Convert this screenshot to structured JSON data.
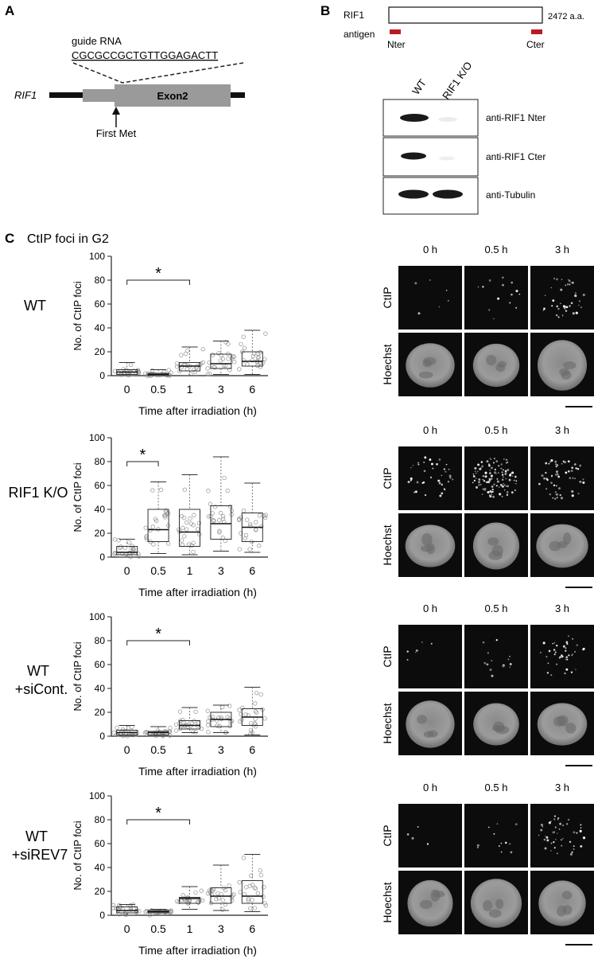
{
  "panelA": {
    "letter": "A",
    "guide_label": "guide RNA",
    "guide_seq": "CGCGCCGCTGTTGGAGACTT",
    "gene": "RIF1",
    "exon": "Exon2",
    "first_met": "First Met"
  },
  "panelB": {
    "letter": "B",
    "protein": "RIF1",
    "length": "2472 a.a.",
    "antigen": "antigen",
    "nter": "Nter",
    "cter": "Cter",
    "lanes": [
      "WT",
      "RIF1 K/O"
    ],
    "blots": [
      "anti-RIF1 Nter",
      "anti-RIF1 Cter",
      "anti-Tubulin"
    ],
    "antigen_color": "#b81c22"
  },
  "panelC": {
    "letter": "C",
    "title": "CtIP foci in G2",
    "ylabel": "No. of CtIP foci",
    "xlabel": "Time after irradiation (h)",
    "image_times": [
      "0 h",
      "0.5 h",
      "3 h"
    ],
    "image_rows": [
      "CtIP",
      "Hoechst"
    ],
    "significance": "*",
    "conditions": [
      {
        "label1": "WT",
        "label2": ""
      },
      {
        "label1": "RIF1 K/O",
        "label2": ""
      },
      {
        "label1": "WT",
        "label2": "+siCont."
      },
      {
        "label1": "WT",
        "label2": "+siREV7"
      }
    ]
  },
  "chart_data": [
    {
      "type": "box",
      "title": "",
      "xlabel": "Time after irradiation (h)",
      "ylabel": "No. of CtIP foci",
      "categories": [
        "0",
        "0.5",
        "1",
        "3",
        "6"
      ],
      "yticks": [
        0,
        20,
        40,
        60,
        80,
        100
      ],
      "ylim": [
        0,
        100
      ],
      "boxes": [
        {
          "min": 0,
          "q1": 1,
          "median": 3,
          "q3": 5,
          "max": 11
        },
        {
          "min": 0,
          "q1": 0,
          "median": 1,
          "q3": 2,
          "max": 5
        },
        {
          "min": 0,
          "q1": 4,
          "median": 8,
          "q3": 11,
          "max": 24
        },
        {
          "min": 1,
          "q1": 6,
          "median": 10,
          "q3": 18,
          "max": 29
        },
        {
          "min": 1,
          "q1": 8,
          "median": 12,
          "q3": 20,
          "max": 38
        }
      ],
      "significance": {
        "from": "0",
        "to": "1",
        "label": "*"
      }
    },
    {
      "type": "box",
      "title": "",
      "xlabel": "Time after irradiation (h)",
      "ylabel": "No. of CtIP foci",
      "categories": [
        "0",
        "0.5",
        "1",
        "3",
        "6"
      ],
      "yticks": [
        0,
        20,
        40,
        60,
        80,
        100
      ],
      "ylim": [
        0,
        100
      ],
      "boxes": [
        {
          "min": 0,
          "q1": 2,
          "median": 4,
          "q3": 9,
          "max": 15
        },
        {
          "min": 3,
          "q1": 13,
          "median": 23,
          "q3": 40,
          "max": 63
        },
        {
          "min": 2,
          "q1": 9,
          "median": 21,
          "q3": 40,
          "max": 69
        },
        {
          "min": 5,
          "q1": 15,
          "median": 28,
          "q3": 43,
          "max": 84
        },
        {
          "min": 4,
          "q1": 13,
          "median": 25,
          "q3": 37,
          "max": 62
        }
      ],
      "significance": {
        "from": "0",
        "to": "0.5",
        "label": "*"
      }
    },
    {
      "type": "box",
      "title": "",
      "xlabel": "Time after irradiation (h)",
      "ylabel": "No. of CtIP foci",
      "categories": [
        "0",
        "0.5",
        "1",
        "3",
        "6"
      ],
      "yticks": [
        0,
        20,
        40,
        60,
        80,
        100
      ],
      "ylim": [
        0,
        100
      ],
      "boxes": [
        {
          "min": 0,
          "q1": 1,
          "median": 3,
          "q3": 5,
          "max": 9
        },
        {
          "min": 0,
          "q1": 1,
          "median": 3,
          "q3": 4,
          "max": 8
        },
        {
          "min": 3,
          "q1": 6,
          "median": 9,
          "q3": 13,
          "max": 24
        },
        {
          "min": 3,
          "q1": 8,
          "median": 14,
          "q3": 20,
          "max": 26
        },
        {
          "min": 1,
          "q1": 9,
          "median": 16,
          "q3": 23,
          "max": 41
        }
      ],
      "significance": {
        "from": "0",
        "to": "1",
        "label": "*"
      }
    },
    {
      "type": "box",
      "title": "",
      "xlabel": "Time after irradiation (h)",
      "ylabel": "No. of CtIP foci",
      "categories": [
        "0",
        "0.5",
        "1",
        "3",
        "6"
      ],
      "yticks": [
        0,
        20,
        40,
        60,
        80,
        100
      ],
      "ylim": [
        0,
        100
      ],
      "boxes": [
        {
          "min": 0,
          "q1": 2,
          "median": 4,
          "q3": 7,
          "max": 9
        },
        {
          "min": 0,
          "q1": 2,
          "median": 3,
          "q3": 4,
          "max": 5
        },
        {
          "min": 5,
          "q1": 10,
          "median": 14,
          "q3": 15,
          "max": 24
        },
        {
          "min": 4,
          "q1": 10,
          "median": 16,
          "q3": 23,
          "max": 42
        },
        {
          "min": 3,
          "q1": 10,
          "median": 16,
          "q3": 29,
          "max": 51
        }
      ],
      "significance": {
        "from": "0",
        "to": "1",
        "label": "*"
      }
    }
  ]
}
